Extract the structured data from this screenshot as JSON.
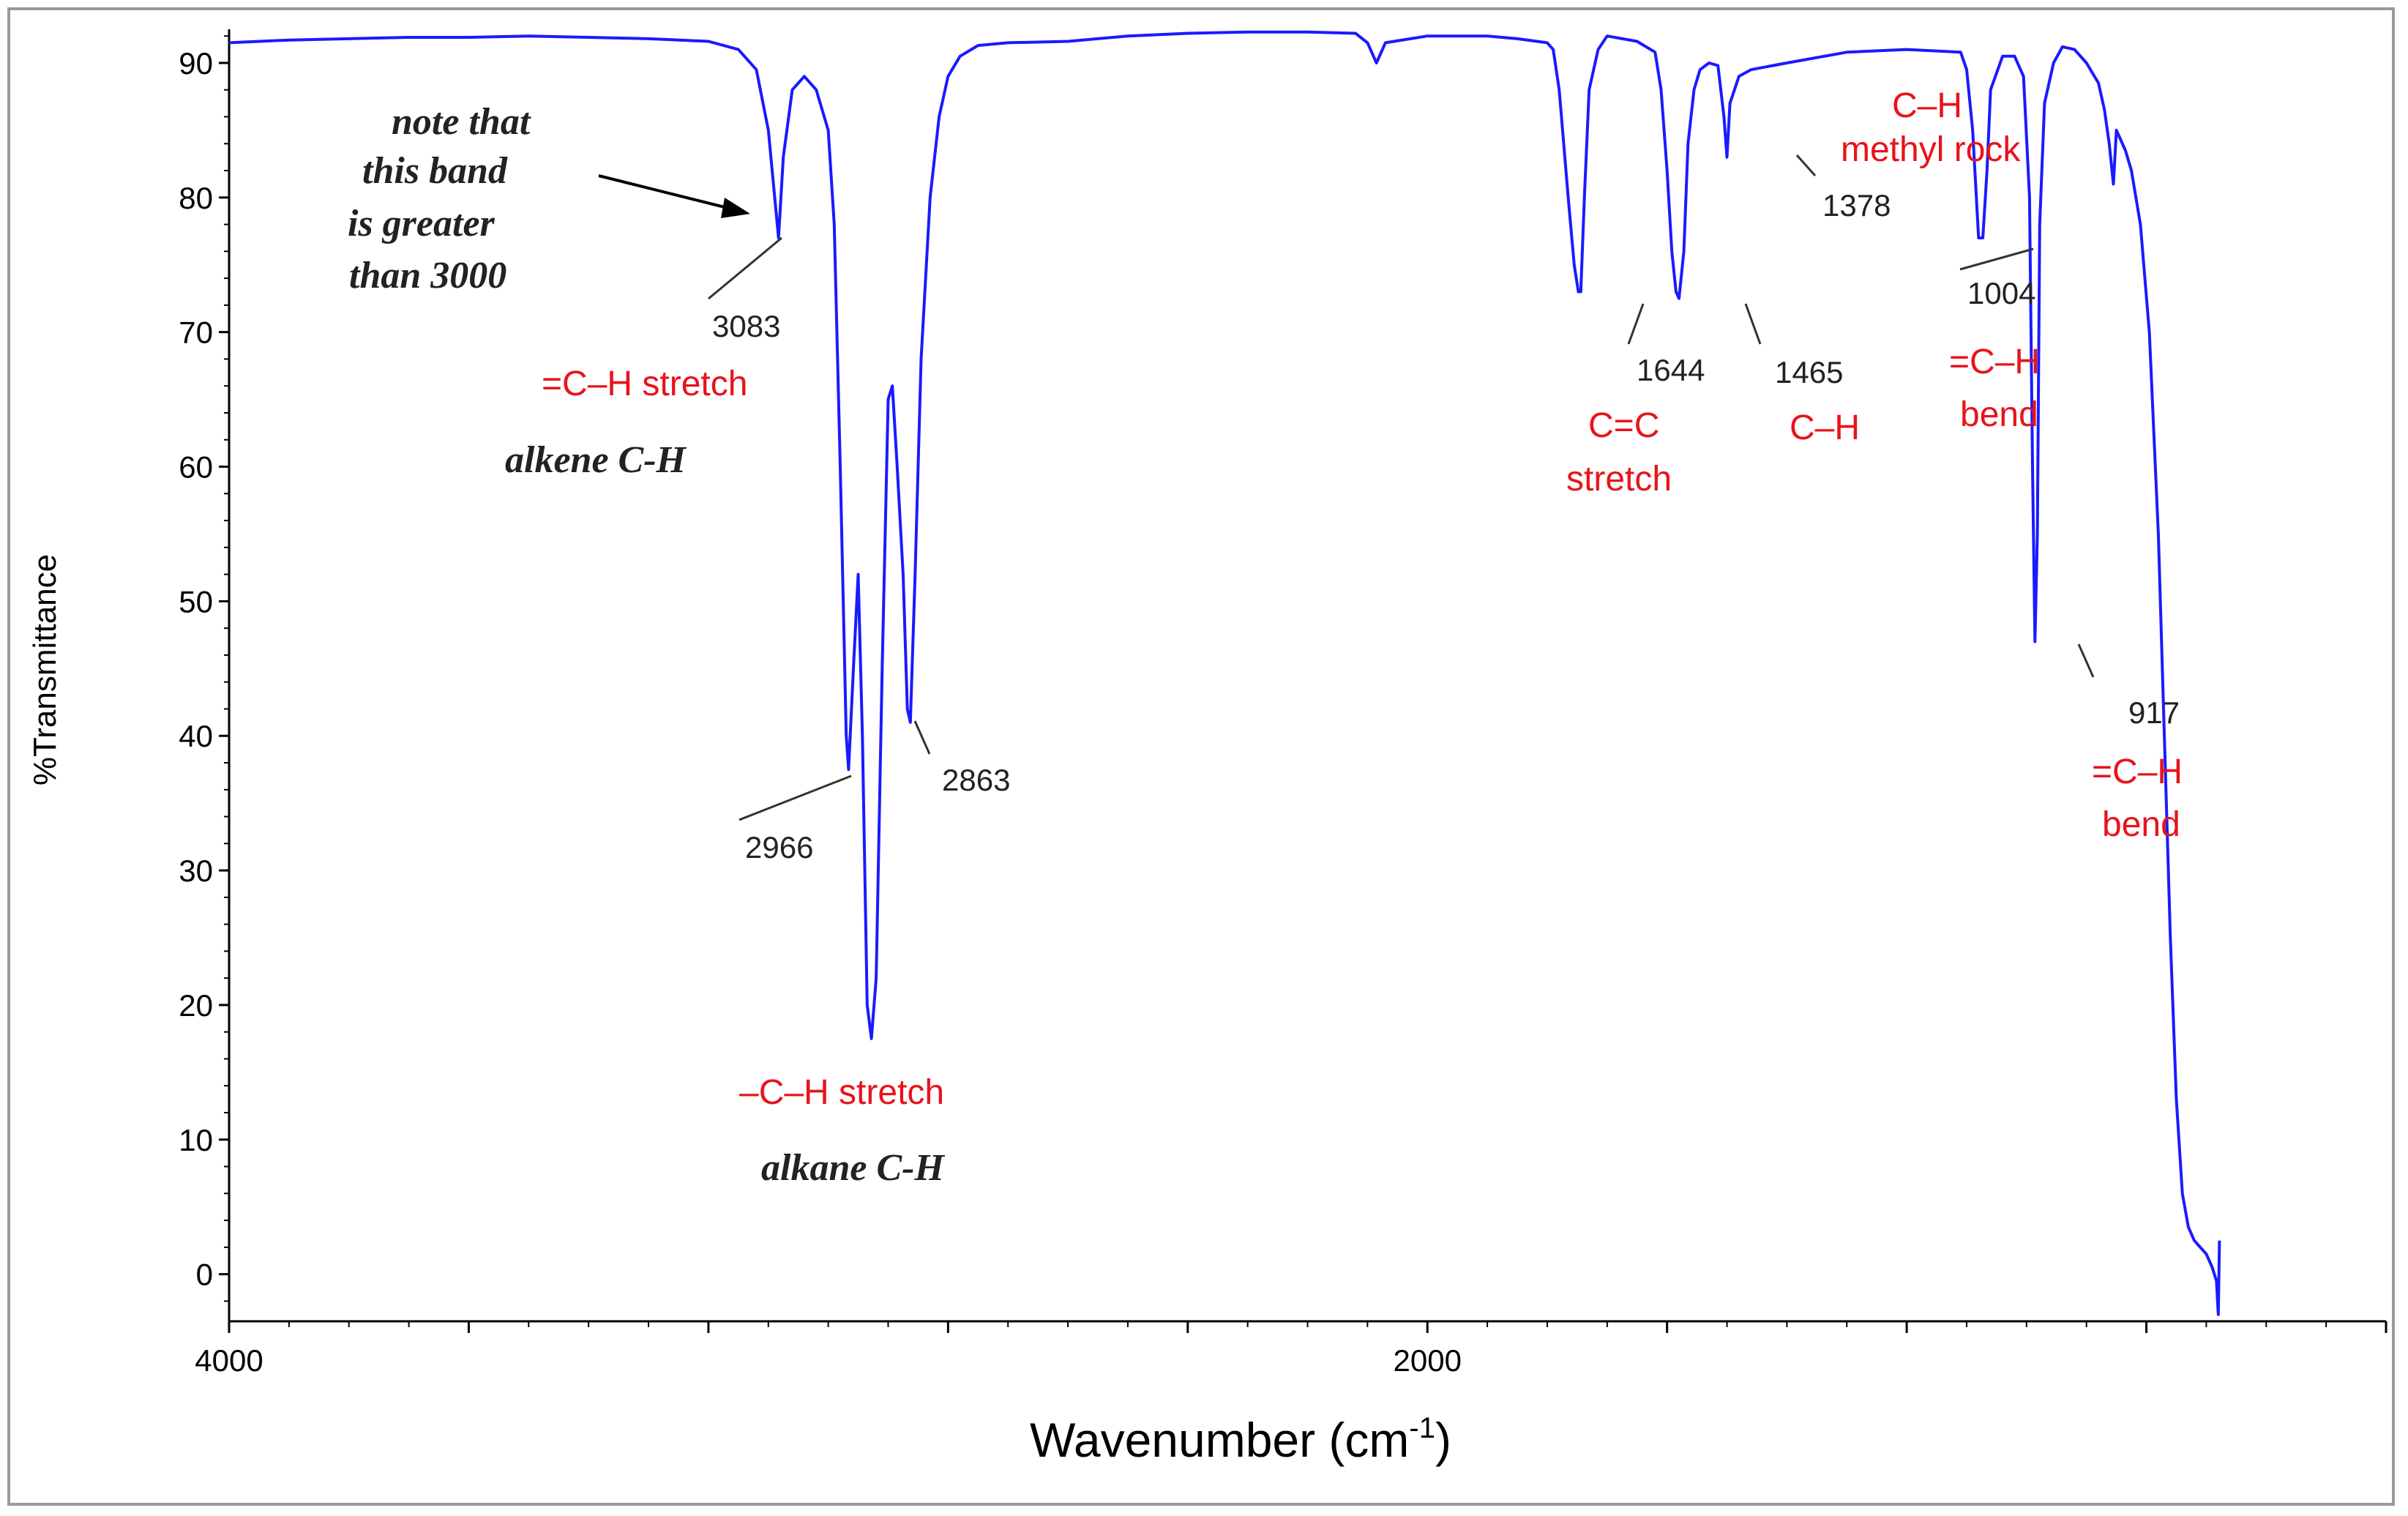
{
  "chart_data": {
    "type": "line",
    "title": "",
    "xlabel": "Wavenumber (cm",
    "xlabel_sup": "-1",
    "xlabel_close": ")",
    "ylabel": "%Transmittance",
    "xlim": [
      4000,
      400
    ],
    "ylim": [
      -3.5,
      92.5
    ],
    "x_ticks_major": [
      {
        "value": 4000,
        "label": "4000"
      },
      {
        "value": 2000,
        "label": "2000"
      }
    ],
    "y_ticks": [
      {
        "value": 90,
        "label": "90"
      },
      {
        "value": 80,
        "label": "80"
      },
      {
        "value": 70,
        "label": "70"
      },
      {
        "value": 60,
        "label": "60"
      },
      {
        "value": 50,
        "label": "50"
      },
      {
        "value": 40,
        "label": "40"
      },
      {
        "value": 30,
        "label": "30"
      },
      {
        "value": 20,
        "label": "20"
      },
      {
        "value": 10,
        "label": "10"
      },
      {
        "value": 0,
        "label": "0"
      }
    ],
    "line_color": "#1a1aff",
    "annotation_color": "#e8131b",
    "series": [
      {
        "name": "IR spectrum",
        "points": [
          [
            4000,
            91.5
          ],
          [
            3900,
            91.7
          ],
          [
            3800,
            91.8
          ],
          [
            3700,
            91.9
          ],
          [
            3600,
            91.9
          ],
          [
            3500,
            92.0
          ],
          [
            3400,
            91.9
          ],
          [
            3300,
            91.8
          ],
          [
            3200,
            91.6
          ],
          [
            3150,
            91.0
          ],
          [
            3120,
            89.5
          ],
          [
            3100,
            85.0
          ],
          [
            3083,
            77.0
          ],
          [
            3075,
            83.0
          ],
          [
            3060,
            88.0
          ],
          [
            3040,
            89.0
          ],
          [
            3020,
            88.0
          ],
          [
            3000,
            85.0
          ],
          [
            2990,
            78.0
          ],
          [
            2980,
            60.0
          ],
          [
            2970,
            40.0
          ],
          [
            2966,
            37.5
          ],
          [
            2958,
            45.0
          ],
          [
            2950,
            52.0
          ],
          [
            2943,
            40.0
          ],
          [
            2935,
            20.0
          ],
          [
            2928,
            17.5
          ],
          [
            2920,
            22.0
          ],
          [
            2910,
            45.0
          ],
          [
            2900,
            65.0
          ],
          [
            2893,
            66.0
          ],
          [
            2885,
            60.0
          ],
          [
            2875,
            52.0
          ],
          [
            2868,
            42.0
          ],
          [
            2863,
            41.0
          ],
          [
            2855,
            52.0
          ],
          [
            2845,
            68.0
          ],
          [
            2830,
            80.0
          ],
          [
            2815,
            86.0
          ],
          [
            2800,
            89.0
          ],
          [
            2780,
            90.5
          ],
          [
            2750,
            91.3
          ],
          [
            2700,
            91.5
          ],
          [
            2600,
            91.6
          ],
          [
            2500,
            92.0
          ],
          [
            2400,
            92.2
          ],
          [
            2300,
            92.3
          ],
          [
            2200,
            92.3
          ],
          [
            2120,
            92.2
          ],
          [
            2100,
            91.5
          ],
          [
            2085,
            90.0
          ],
          [
            2070,
            91.5
          ],
          [
            2000,
            92.0
          ],
          [
            1900,
            92.0
          ],
          [
            1850,
            91.8
          ],
          [
            1800,
            91.5
          ],
          [
            1790,
            91.0
          ],
          [
            1780,
            88.0
          ],
          [
            1765,
            80.0
          ],
          [
            1755,
            75.0
          ],
          [
            1748,
            73.0
          ],
          [
            1744,
            73.0
          ],
          [
            1738,
            80.0
          ],
          [
            1730,
            88.0
          ],
          [
            1715,
            91.0
          ],
          [
            1700,
            92.0
          ],
          [
            1650,
            91.6
          ],
          [
            1620,
            90.8
          ],
          [
            1610,
            88.0
          ],
          [
            1600,
            82.0
          ],
          [
            1592,
            76.0
          ],
          [
            1585,
            73.0
          ],
          [
            1580,
            72.5
          ],
          [
            1572,
            76.0
          ],
          [
            1565,
            84.0
          ],
          [
            1555,
            88.0
          ],
          [
            1545,
            89.5
          ],
          [
            1530,
            90.0
          ],
          [
            1515,
            89.8
          ],
          [
            1505,
            86.0
          ],
          [
            1500,
            83.0
          ],
          [
            1495,
            87.0
          ],
          [
            1480,
            89.0
          ],
          [
            1460,
            89.5
          ],
          [
            1400,
            90.0
          ],
          [
            1300,
            90.8
          ],
          [
            1200,
            91.0
          ],
          [
            1110,
            90.8
          ],
          [
            1100,
            89.5
          ],
          [
            1090,
            85.0
          ],
          [
            1080,
            77.0
          ],
          [
            1073,
            77.0
          ],
          [
            1066,
            82.0
          ],
          [
            1060,
            88.0
          ],
          [
            1040,
            90.5
          ],
          [
            1020,
            90.5
          ],
          [
            1005,
            89.0
          ],
          [
            995,
            80.0
          ],
          [
            990,
            60.0
          ],
          [
            986,
            47.0
          ],
          [
            982,
            55.0
          ],
          [
            978,
            78.0
          ],
          [
            970,
            87.0
          ],
          [
            955,
            90.0
          ],
          [
            940,
            91.2
          ],
          [
            920,
            91.0
          ],
          [
            900,
            90.0
          ],
          [
            880,
            88.5
          ],
          [
            870,
            86.5
          ],
          [
            862,
            84.0
          ],
          [
            855,
            81.0
          ],
          [
            850,
            85.0
          ],
          [
            845,
            84.5
          ],
          [
            835,
            83.5
          ],
          [
            825,
            82.0
          ],
          [
            810,
            78.0
          ],
          [
            795,
            70.0
          ],
          [
            780,
            55.0
          ],
          [
            770,
            40.0
          ],
          [
            760,
            25.0
          ],
          [
            750,
            13.0
          ],
          [
            740,
            6.0
          ],
          [
            730,
            3.5
          ],
          [
            720,
            2.5
          ],
          [
            710,
            2.0
          ],
          [
            700,
            1.5
          ],
          [
            690,
            0.5
          ],
          [
            683,
            -0.5
          ],
          [
            680,
            -3.0
          ],
          [
            678,
            2.5
          ]
        ]
      }
    ],
    "annotations": [
      {
        "label": "3083",
        "kind": "peak"
      },
      {
        "label": "=C–H stretch",
        "kind": "red"
      },
      {
        "label": "alkene C-H",
        "kind": "italic"
      },
      {
        "label": "note that",
        "kind": "italic"
      },
      {
        "label": "this band",
        "kind": "italic"
      },
      {
        "label": "is greater",
        "kind": "italic"
      },
      {
        "label": "than 3000",
        "kind": "italic"
      },
      {
        "label": "2966",
        "kind": "peak"
      },
      {
        "label": "2863",
        "kind": "peak"
      },
      {
        "label": "–C–H stretch",
        "kind": "red"
      },
      {
        "label": "alkane C-H",
        "kind": "italic"
      },
      {
        "label": "1644",
        "kind": "peak"
      },
      {
        "label": "C=C",
        "kind": "red"
      },
      {
        "label": "stretch",
        "kind": "red"
      },
      {
        "label": "1465",
        "kind": "peak"
      },
      {
        "label": "C–H",
        "kind": "red"
      },
      {
        "label": "1378",
        "kind": "peak"
      },
      {
        "label": "C–H",
        "kind": "red"
      },
      {
        "label": "methyl rock",
        "kind": "red"
      },
      {
        "label": "1004",
        "kind": "peak"
      },
      {
        "label": "=C–H",
        "kind": "red"
      },
      {
        "label": "bend",
        "kind": "red"
      },
      {
        "label": "917",
        "kind": "peak"
      },
      {
        "label": "=C–H",
        "kind": "red"
      },
      {
        "label": "bend",
        "kind": "red"
      }
    ]
  }
}
